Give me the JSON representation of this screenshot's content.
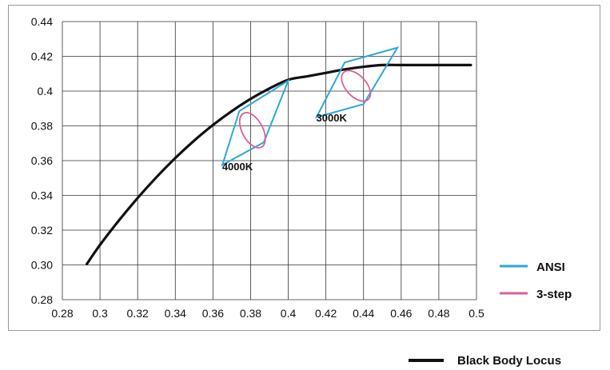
{
  "chart_data": {
    "type": "line",
    "title": "",
    "xlabel": "",
    "ylabel": "",
    "xlim": [
      0.28,
      0.5
    ],
    "ylim": [
      0.28,
      0.44
    ],
    "grid": true,
    "x_ticks": [
      "0.28",
      "0.3",
      "0.32",
      "0.34",
      "0.36",
      "0.38",
      "0.4",
      "0.42",
      "0.44",
      "0.46",
      "0.48",
      "0.5"
    ],
    "y_ticks": [
      "0.28",
      "0.30",
      "0.32",
      "0.34",
      "0.36",
      "0.38",
      "0.4",
      "0.42",
      "0.44"
    ],
    "colors": {
      "ansi": "#2aa9d6",
      "three_step": "#d9609a",
      "locus": "#111111",
      "grid": "#333333"
    },
    "legend": [
      {
        "label": "ANSI",
        "color": "#2aa9d6",
        "placement": "bottom-right"
      },
      {
        "label": "3-step",
        "color": "#d9609a",
        "placement": "bottom-right"
      },
      {
        "label": "Black Body Locus",
        "color": "#111111",
        "placement": "below chart"
      }
    ],
    "series": [
      {
        "name": "Black Body Locus",
        "kind": "curve",
        "points": [
          [
            0.293,
            0.3005
          ],
          [
            0.3,
            0.3115
          ],
          [
            0.31,
            0.3255
          ],
          [
            0.32,
            0.3385
          ],
          [
            0.33,
            0.3505
          ],
          [
            0.34,
            0.3615
          ],
          [
            0.35,
            0.3715
          ],
          [
            0.36,
            0.3805
          ],
          [
            0.37,
            0.3885
          ],
          [
            0.38,
            0.3955
          ],
          [
            0.39,
            0.4015
          ],
          [
            0.4,
            0.4065
          ],
          [
            0.41,
            0.4085
          ],
          [
            0.42,
            0.4105
          ],
          [
            0.43,
            0.4125
          ],
          [
            0.44,
            0.414
          ],
          [
            0.45,
            0.415
          ],
          [
            0.46,
            0.415
          ],
          [
            0.47,
            0.415
          ],
          [
            0.48,
            0.415
          ],
          [
            0.49,
            0.415
          ],
          [
            0.497,
            0.415
          ]
        ]
      },
      {
        "name": "ANSI",
        "label": "4000K",
        "kind": "polygon",
        "points": [
          [
            0.365,
            0.3575
          ],
          [
            0.374,
            0.3885
          ],
          [
            0.4,
            0.406
          ],
          [
            0.387,
            0.3705
          ]
        ]
      },
      {
        "name": "ANSI",
        "label": "3000K",
        "kind": "polygon",
        "points": [
          [
            0.415,
            0.385
          ],
          [
            0.43,
            0.4165
          ],
          [
            0.458,
            0.425
          ],
          [
            0.44,
            0.3925
          ]
        ]
      },
      {
        "name": "3-step",
        "label": "4000K",
        "kind": "ellipse",
        "center": [
          0.381,
          0.3775
        ],
        "rx": 0.0055,
        "ry": 0.011,
        "rotation": -28
      },
      {
        "name": "3-step",
        "label": "3000K",
        "kind": "ellipse",
        "center": [
          0.436,
          0.403
        ],
        "rx": 0.0055,
        "ry": 0.0105,
        "rotation": -42
      }
    ],
    "annotations": [
      {
        "text": "4000K",
        "x": 0.373,
        "y": 0.3545
      },
      {
        "text": "3000K",
        "x": 0.423,
        "y": 0.3825
      }
    ]
  }
}
